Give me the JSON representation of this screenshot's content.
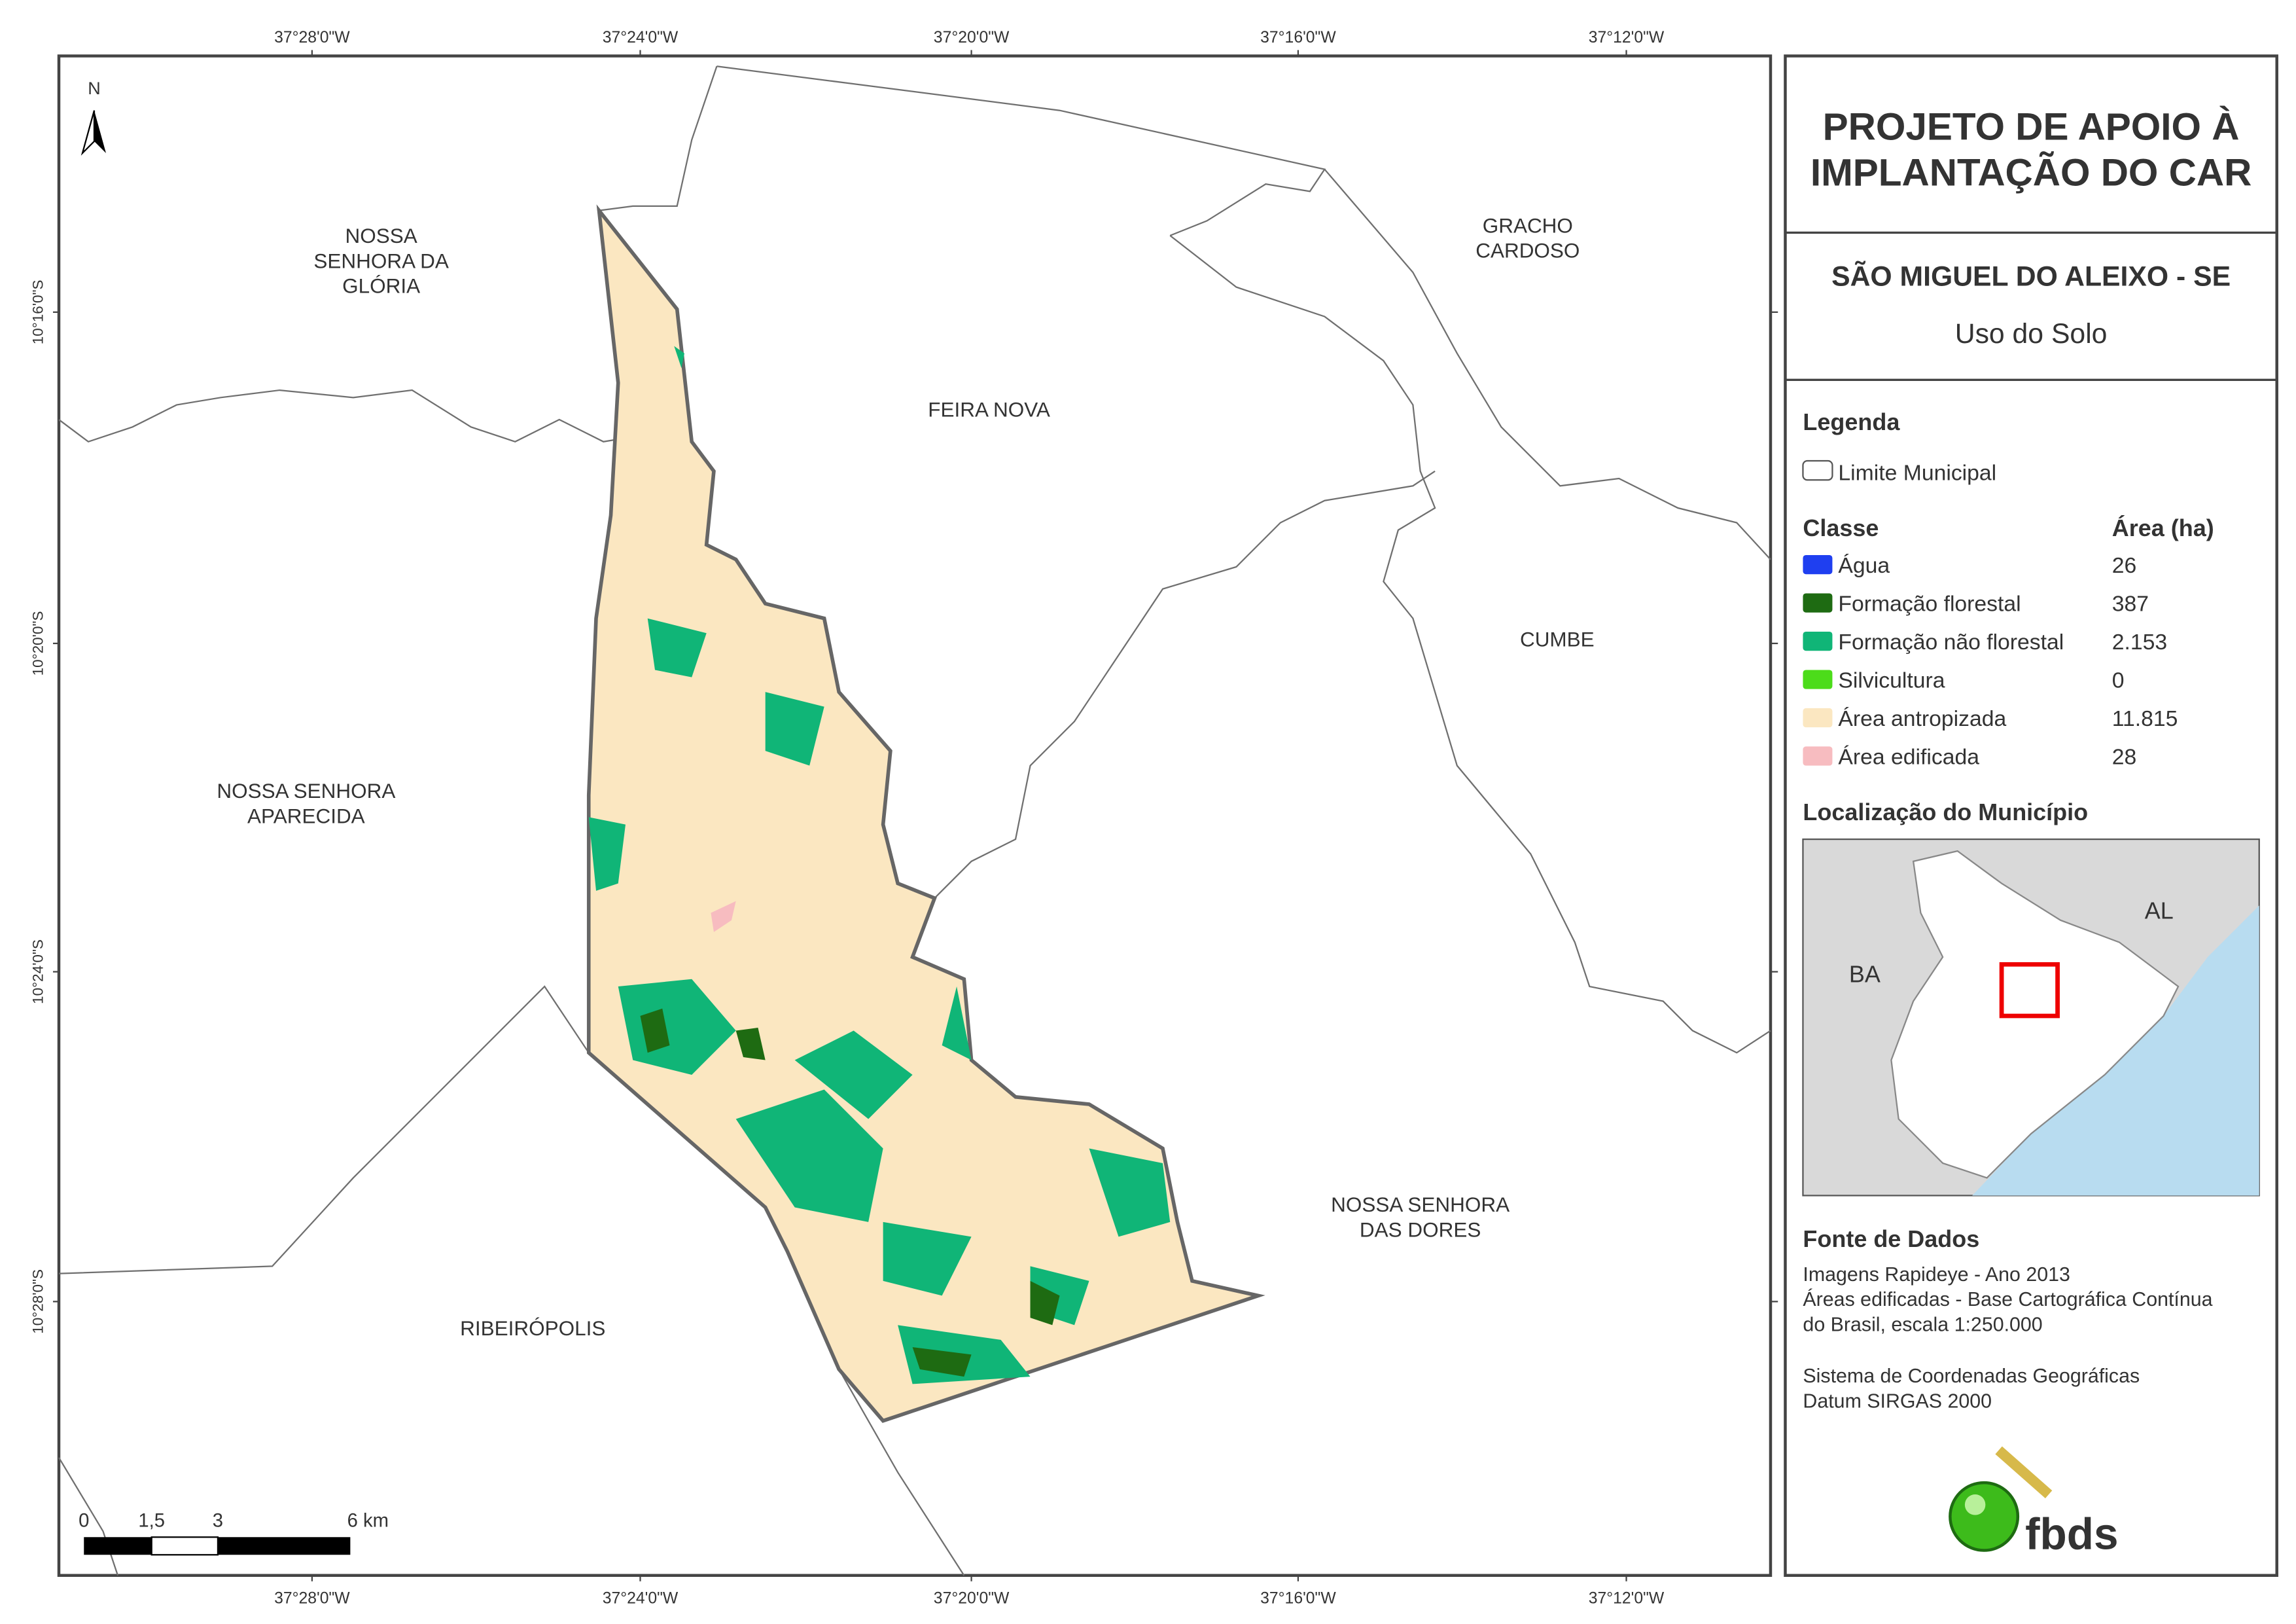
{
  "map": {
    "x_labels": [
      "37°28'0\"W",
      "37°24'0\"W",
      "37°20'0\"W",
      "37°16'0\"W",
      "37°12'0\"W"
    ],
    "y_labels": [
      "10°16'0\"S",
      "10°20'0\"S",
      "10°24'0\"S",
      "10°28'0\"S"
    ],
    "north": "N",
    "places": [
      {
        "lines": [
          "NOSSA",
          "SENHORA DA",
          "GLÓRIA"
        ]
      },
      {
        "lines": [
          "GRACHO",
          "CARDOSO"
        ]
      },
      {
        "lines": [
          "FEIRA NOVA"
        ]
      },
      {
        "lines": [
          "CUMBE"
        ]
      },
      {
        "lines": [
          "NOSSA SENHORA",
          "APARECIDA"
        ]
      },
      {
        "lines": [
          "NOSSA SENHORA",
          "DAS DORES"
        ]
      },
      {
        "lines": [
          "RIBEIRÓPOLIS"
        ]
      }
    ],
    "scale_labels": [
      "0",
      "1,5",
      "3",
      "6 km"
    ]
  },
  "panel": {
    "title": [
      "PROJETO DE APOIO À",
      "IMPLANTAÇÃO DO CAR"
    ],
    "municipality": "SÃO MIGUEL DO ALEIXO - SE",
    "subtitle": "Uso do Solo",
    "legend_title": "Legenda",
    "boundary_label": "Limite Municipal",
    "class_header": "Classe",
    "area_header": "Área (ha)",
    "classes": [
      {
        "name": "Água",
        "color": "#1f3ff0",
        "area": "26"
      },
      {
        "name": "Formação florestal",
        "color": "#1e6b12",
        "area": "387"
      },
      {
        "name": "Formação não florestal",
        "color": "#10b577",
        "area": "2.153"
      },
      {
        "name": "Silvicultura",
        "color": "#4cdc1a",
        "area": "0"
      },
      {
        "name": "Área antropizada",
        "color": "#fbe7c1",
        "area": "11.815"
      },
      {
        "name": "Área edificada",
        "color": "#f7bcc0",
        "area": "28"
      }
    ],
    "location_title": "Localização do Município",
    "location_labels": [
      "BA",
      "AL"
    ],
    "sources_title": "Fonte de Dados",
    "sources": [
      "Imagens Rapideye - Ano 2013",
      "Áreas edificadas - Base Cartográfica Contínua",
      "do Brasil, escala 1:250.000",
      "Sistema de Coordenadas Geográficas",
      "Datum SIRGAS 2000"
    ],
    "logo": "fbds"
  }
}
